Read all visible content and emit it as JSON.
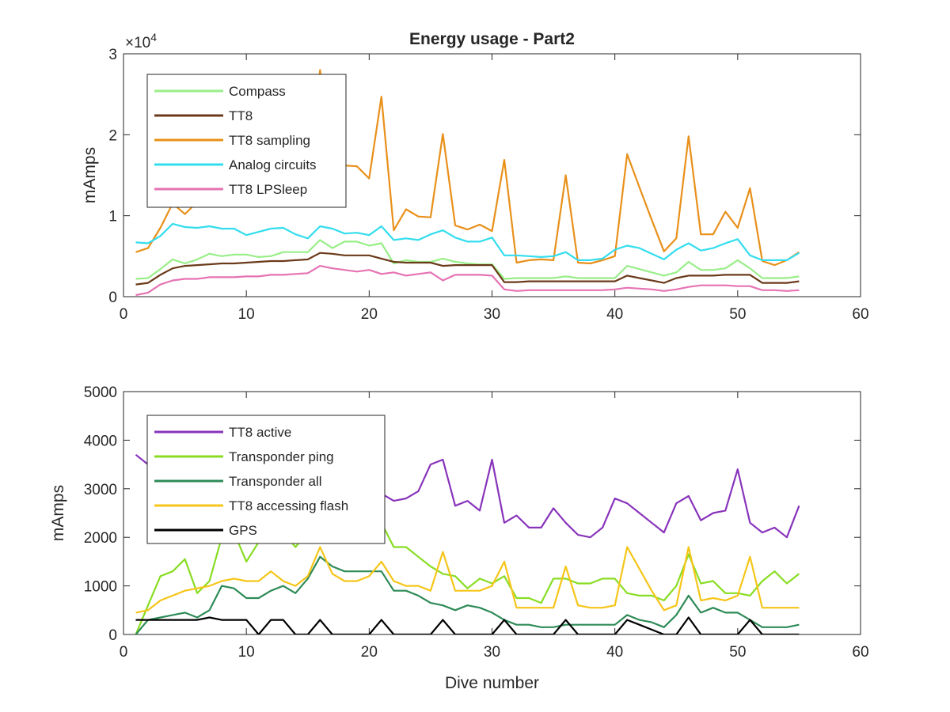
{
  "chart_data": [
    {
      "type": "line",
      "title": "Energy usage - Part2",
      "xlabel": "",
      "ylabel": "mAmps",
      "exponent_label": "×10",
      "exponent_power": "4",
      "xlim": [
        0,
        60
      ],
      "ylim": [
        0,
        30000
      ],
      "x_ticks": [
        0,
        10,
        20,
        30,
        40,
        50,
        60
      ],
      "y_ticks": [
        0,
        10000,
        20000,
        30000
      ],
      "y_tick_labels": [
        "0",
        "1",
        "2",
        "3"
      ],
      "grid": false,
      "legend_position": "top-left",
      "x": [
        1,
        2,
        3,
        4,
        5,
        6,
        7,
        8,
        9,
        10,
        11,
        12,
        13,
        14,
        15,
        16,
        17,
        18,
        19,
        20,
        21,
        22,
        23,
        24,
        25,
        26,
        27,
        28,
        29,
        30,
        31,
        32,
        33,
        34,
        35,
        36,
        37,
        38,
        39,
        40,
        41,
        42,
        43,
        44,
        45,
        46,
        47,
        48,
        49,
        50,
        51,
        52,
        53,
        54,
        55
      ],
      "series": [
        {
          "name": "Compass",
          "color": "#99ee88",
          "values": [
            2200,
            2300,
            3400,
            4600,
            4100,
            4600,
            5300,
            5000,
            5200,
            5200,
            4900,
            5000,
            5500,
            5500,
            5500,
            7000,
            6000,
            6800,
            6800,
            6300,
            6600,
            4100,
            4500,
            4300,
            4300,
            4700,
            4300,
            4100,
            4000,
            4000,
            2200,
            2300,
            2300,
            2300,
            2300,
            2500,
            2300,
            2300,
            2300,
            2300,
            3800,
            3400,
            3000,
            2600,
            3000,
            4300,
            3300,
            3300,
            3500,
            4500,
            3500,
            2300,
            2300,
            2300,
            2500
          ]
        },
        {
          "name": "TT8",
          "color": "#6b3a1a",
          "values": [
            1500,
            1700,
            2700,
            3500,
            3800,
            3900,
            4000,
            4100,
            4100,
            4200,
            4300,
            4400,
            4400,
            4500,
            4600,
            5400,
            5300,
            5100,
            5100,
            5100,
            4700,
            4300,
            4200,
            4200,
            4200,
            3800,
            3900,
            3900,
            3900,
            3900,
            1800,
            1800,
            1900,
            1900,
            1900,
            1900,
            1900,
            1900,
            1900,
            1900,
            2600,
            2300,
            2000,
            1700,
            2300,
            2600,
            2600,
            2600,
            2700,
            2700,
            2700,
            1700,
            1700,
            1700,
            1900
          ]
        },
        {
          "name": "TT8 sampling",
          "color": "#e8901a",
          "values": [
            5500,
            6000,
            8500,
            11500,
            10200,
            11700,
            13600,
            13700,
            13800,
            13800,
            11200,
            13000,
            13500,
            13800,
            14000,
            28000,
            16000,
            16200,
            16100,
            14600,
            24700,
            8200,
            10800,
            9900,
            9800,
            20100,
            8800,
            8300,
            8900,
            8100,
            16900,
            4200,
            4500,
            4600,
            4500,
            15000,
            4200,
            4100,
            4500,
            5000,
            17600,
            13500,
            9500,
            5600,
            7200,
            19800,
            7700,
            7700,
            10500,
            8500,
            13400,
            4400,
            3900,
            4500,
            5500
          ]
        },
        {
          "name": "Analog circuits",
          "color": "#33ddee",
          "values": [
            6700,
            6600,
            7500,
            9000,
            8600,
            8500,
            8700,
            8400,
            8400,
            7600,
            8000,
            8400,
            8500,
            7700,
            7200,
            8700,
            8400,
            7800,
            7900,
            7600,
            8700,
            7000,
            7200,
            7000,
            7700,
            8200,
            7300,
            6800,
            6800,
            7300,
            5100,
            5100,
            5000,
            4900,
            5000,
            5500,
            4500,
            4500,
            4700,
            5800,
            6300,
            6000,
            5300,
            4600,
            5800,
            6600,
            5700,
            6000,
            6600,
            7100,
            5100,
            4500,
            4500,
            4500,
            5400
          ]
        },
        {
          "name": "TT8 LPSleep",
          "color": "#e673b3",
          "values": [
            200,
            500,
            1500,
            2000,
            2200,
            2200,
            2400,
            2400,
            2400,
            2500,
            2500,
            2700,
            2700,
            2800,
            2900,
            3800,
            3500,
            3300,
            3100,
            3300,
            2800,
            3000,
            2600,
            2800,
            3000,
            2000,
            2700,
            2700,
            2700,
            2600,
            900,
            700,
            800,
            800,
            800,
            800,
            800,
            800,
            800,
            900,
            1100,
            1000,
            900,
            700,
            900,
            1200,
            1400,
            1400,
            1400,
            1300,
            1300,
            800,
            800,
            700,
            800
          ]
        }
      ]
    },
    {
      "type": "line",
      "title": "",
      "xlabel": "Dive number",
      "ylabel": "mAmps",
      "xlim": [
        0,
        60
      ],
      "ylim": [
        0,
        5000
      ],
      "x_ticks": [
        0,
        10,
        20,
        30,
        40,
        50,
        60
      ],
      "y_ticks": [
        0,
        1000,
        2000,
        3000,
        4000,
        5000
      ],
      "y_tick_labels": [
        "0",
        "1000",
        "2000",
        "3000",
        "4000",
        "5000"
      ],
      "grid": false,
      "legend_position": "top-left",
      "x": [
        1,
        2,
        3,
        4,
        5,
        6,
        7,
        8,
        9,
        10,
        11,
        12,
        13,
        14,
        15,
        16,
        17,
        18,
        19,
        20,
        21,
        22,
        23,
        24,
        25,
        26,
        27,
        28,
        29,
        30,
        31,
        32,
        33,
        34,
        35,
        36,
        37,
        38,
        39,
        40,
        41,
        42,
        43,
        44,
        45,
        46,
        47,
        48,
        49,
        50,
        51,
        52,
        53,
        54,
        55
      ],
      "series": [
        {
          "name": "TT8 active",
          "color": "#8833bb",
          "values": [
            3700,
            3500,
            3300,
            3400,
            3200,
            3100,
            3300,
            3400,
            3400,
            3300,
            3300,
            3300,
            3300,
            3200,
            3100,
            3000,
            3000,
            2900,
            2900,
            2900,
            2900,
            2750,
            2800,
            2950,
            3500,
            3600,
            2650,
            2750,
            2550,
            3600,
            2300,
            2450,
            2200,
            2200,
            2600,
            2300,
            2050,
            2000,
            2200,
            2800,
            2700,
            2500,
            2300,
            2100,
            2700,
            2850,
            2350,
            2500,
            2550,
            3400,
            2300,
            2100,
            2200,
            2000,
            2650
          ]
        },
        {
          "name": "Transponder ping",
          "color": "#88dd22",
          "values": [
            0,
            600,
            1200,
            1300,
            1550,
            850,
            1100,
            2000,
            2100,
            1500,
            1900,
            2100,
            2100,
            1800,
            2100,
            2100,
            2100,
            2100,
            2100,
            2100,
            2300,
            1800,
            1800,
            1600,
            1400,
            1250,
            1200,
            950,
            1150,
            1050,
            1200,
            750,
            750,
            650,
            1150,
            1150,
            1050,
            1050,
            1150,
            1150,
            850,
            800,
            800,
            700,
            1000,
            1650,
            1050,
            1100,
            850,
            850,
            800,
            1100,
            1300,
            1050,
            1250
          ]
        },
        {
          "name": "Transponder all",
          "color": "#2e8b57",
          "values": [
            0,
            300,
            350,
            400,
            450,
            350,
            500,
            1000,
            950,
            750,
            750,
            900,
            1000,
            850,
            1150,
            1600,
            1400,
            1300,
            1300,
            1300,
            1300,
            900,
            900,
            800,
            650,
            600,
            500,
            600,
            550,
            450,
            300,
            200,
            200,
            150,
            150,
            200,
            200,
            200,
            200,
            200,
            400,
            300,
            250,
            150,
            400,
            800,
            450,
            550,
            450,
            450,
            300,
            150,
            150,
            150,
            200
          ]
        },
        {
          "name": "TT8 accessing flash",
          "color": "#f5c518",
          "values": [
            450,
            500,
            700,
            800,
            900,
            950,
            1000,
            1100,
            1150,
            1100,
            1100,
            1300,
            1100,
            1000,
            1200,
            1800,
            1250,
            1100,
            1100,
            1200,
            1500,
            1100,
            1000,
            1000,
            900,
            1700,
            900,
            900,
            900,
            1000,
            1500,
            550,
            550,
            550,
            550,
            1400,
            600,
            550,
            550,
            600,
            1800,
            1350,
            900,
            500,
            600,
            1800,
            700,
            750,
            700,
            800,
            1600,
            550,
            550,
            550,
            550
          ]
        },
        {
          "name": "GPS",
          "color": "#000000",
          "values": [
            300,
            300,
            300,
            300,
            300,
            300,
            350,
            300,
            300,
            300,
            0,
            300,
            300,
            0,
            0,
            300,
            0,
            0,
            0,
            0,
            300,
            0,
            0,
            0,
            0,
            300,
            0,
            0,
            0,
            0,
            300,
            0,
            0,
            0,
            0,
            300,
            0,
            0,
            0,
            0,
            300,
            200,
            100,
            0,
            0,
            350,
            0,
            0,
            0,
            0,
            300,
            0,
            0,
            0,
            0
          ]
        }
      ]
    }
  ]
}
